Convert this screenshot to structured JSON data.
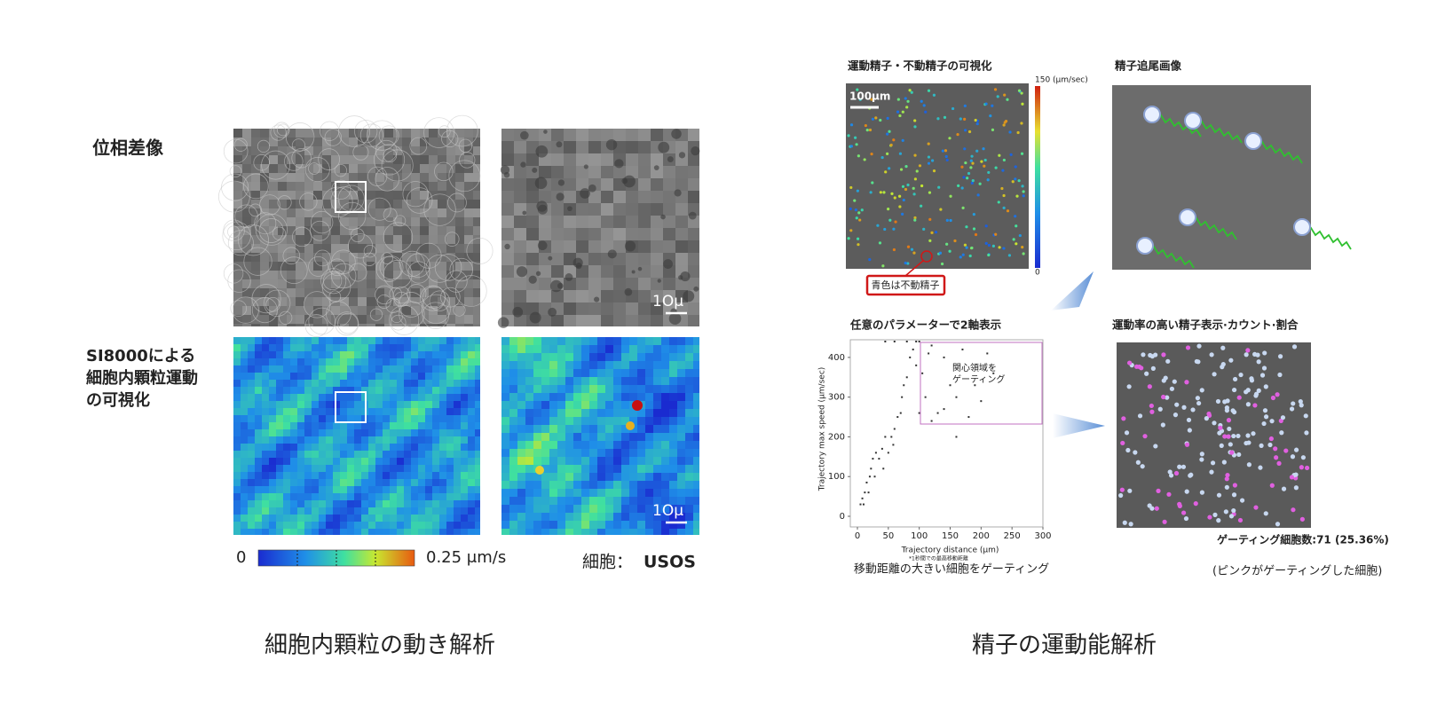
{
  "left": {
    "caption": "細胞内顆粒の動き解析",
    "row_labels": [
      [
        "位相差像"
      ],
      [
        "SI8000による",
        "細胞内顆粒運動",
        "の可視化"
      ]
    ],
    "scale_labels": [
      "1Oμ",
      "1Oμ"
    ],
    "colorbar": {
      "min_label": "0",
      "max_label": "0.25 μm/s"
    },
    "cell_label": "細胞：",
    "cell_name": "USOS"
  },
  "right": {
    "caption": "精子の運動能解析",
    "panel_titles": [
      "運動精子・不動精子の可視化",
      "精子追尾画像",
      "任意のパラメーターで2軸表示",
      "運動率の高い精子表示·カウント·割合"
    ],
    "scale_label": "100μm",
    "colorbar": {
      "max_label": "150 (μm/sec)",
      "min_label": "0"
    },
    "note": "青色は不動精子",
    "gate_label": [
      "関心領域を",
      "ゲーティング"
    ],
    "gating_count": "ゲーティング細胞数:71 (25.36%)",
    "caption_left": "移動距離の大きい細胞をゲーティング",
    "caption_right": "(ピンクがゲーティングした細胞)"
  },
  "chart_data": {
    "type": "scatter",
    "x_label": "Trajectory distance (μm)",
    "y_label": "Trajectory max speed (μm/sec)",
    "footnote": "*1秒間での最高移動距離",
    "xlim": [
      0,
      300
    ],
    "ylim": [
      0,
      440
    ],
    "xticks": [
      0,
      50,
      100,
      150,
      200,
      250,
      300
    ],
    "yticks": [
      0,
      100,
      200,
      300,
      400
    ],
    "color": "#333333",
    "x": [
      5,
      8,
      10,
      12,
      15,
      18,
      20,
      22,
      25,
      28,
      30,
      35,
      40,
      42,
      45,
      50,
      55,
      58,
      60,
      65,
      70,
      72,
      75,
      80,
      85,
      90,
      95,
      100,
      105,
      110,
      115,
      120,
      130,
      140,
      150,
      160,
      170,
      180,
      190,
      200,
      210,
      220,
      100,
      120,
      140,
      160,
      45,
      60,
      80,
      95
    ],
    "y": [
      30,
      45,
      30,
      60,
      85,
      60,
      100,
      120,
      145,
      100,
      160,
      145,
      170,
      120,
      200,
      160,
      200,
      180,
      220,
      250,
      260,
      300,
      330,
      350,
      400,
      420,
      380,
      440,
      360,
      300,
      410,
      430,
      260,
      400,
      330,
      300,
      420,
      250,
      330,
      290,
      410,
      360,
      260,
      240,
      270,
      200,
      440,
      440,
      440,
      440
    ]
  }
}
